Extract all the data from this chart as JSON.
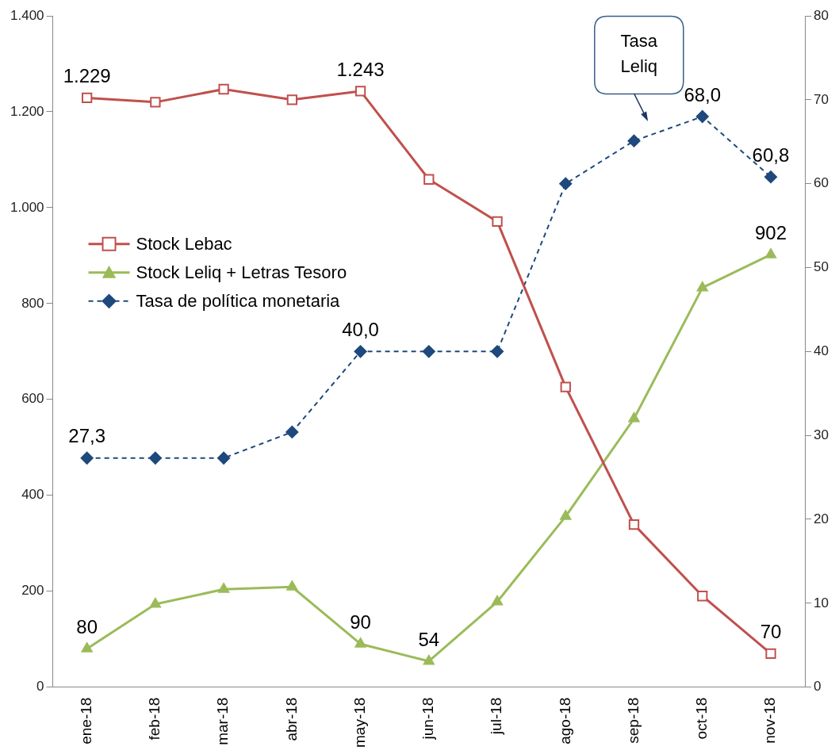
{
  "chart_data": {
    "type": "line",
    "categories": [
      "ene-18",
      "feb-18",
      "mar-18",
      "abr-18",
      "may-18",
      "jun-18",
      "jul-18",
      "ago-18",
      "sep-18",
      "oct-18",
      "nov-18"
    ],
    "series": [
      {
        "name": "Stock Lebac",
        "color": "#c0504d",
        "marker": "square",
        "line_style": "solid",
        "values": [
          1229,
          1220,
          1247,
          1225,
          1243,
          1059,
          971,
          626,
          339,
          190,
          70
        ],
        "value_labels": [
          "1.229",
          null,
          null,
          null,
          "1.243",
          null,
          null,
          null,
          null,
          null,
          "70"
        ]
      },
      {
        "name": "Stock Leliq + Letras Tesoro",
        "color": "#9bbb59",
        "marker": "triangle",
        "line_style": "solid",
        "values": [
          80,
          173,
          204,
          209,
          90,
          54,
          178,
          356,
          560,
          833,
          902
        ],
        "value_labels": [
          "80",
          null,
          null,
          null,
          "90",
          "54",
          null,
          null,
          null,
          null,
          "902"
        ]
      },
      {
        "name": "Tasa de política monetaria",
        "color": "#1f497d",
        "marker": "diamond",
        "line_style": "dashed",
        "axis": "y2",
        "values": [
          27.3,
          27.3,
          27.3,
          30.4,
          40.0,
          40.0,
          40.0,
          60.0,
          65.1,
          68.0,
          60.8
        ],
        "value_labels": [
          "27,3",
          null,
          null,
          null,
          "40,0",
          null,
          null,
          null,
          null,
          "68,0",
          "60,8"
        ]
      }
    ],
    "ylim": [
      0,
      1400
    ],
    "yticks": [
      {
        "value": 0,
        "label": "0"
      },
      {
        "value": 200,
        "label": "200"
      },
      {
        "value": 400,
        "label": "400"
      },
      {
        "value": 600,
        "label": "600"
      },
      {
        "value": 800,
        "label": "800"
      },
      {
        "value": 1000,
        "label": "1.000"
      },
      {
        "value": 1200,
        "label": "1.200"
      },
      {
        "value": 1400,
        "label": "1.400"
      }
    ],
    "y2lim": [
      0,
      80
    ],
    "y2ticks": [
      0,
      10,
      20,
      30,
      40,
      50,
      60,
      70,
      80
    ],
    "annotations": [
      "Tasa Leliq"
    ],
    "legend": "left",
    "grid": false
  }
}
